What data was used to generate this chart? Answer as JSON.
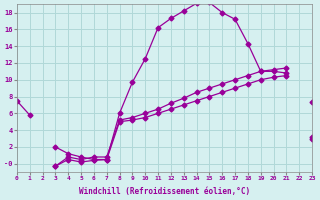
{
  "xlabel": "Windchill (Refroidissement éolien,°C)",
  "background_color": "#d6f0f0",
  "grid_color": "#b0d8d8",
  "line_color": "#990099",
  "xmin": 0,
  "xmax": 23,
  "ymin": -1,
  "ymax": 19,
  "yticks": [
    0,
    2,
    4,
    6,
    8,
    10,
    12,
    14,
    16,
    18
  ],
  "xticks": [
    0,
    1,
    2,
    3,
    4,
    5,
    6,
    7,
    8,
    9,
    10,
    11,
    12,
    13,
    14,
    15,
    16,
    17,
    18,
    19,
    20,
    21,
    22,
    23
  ],
  "line1_x": [
    0,
    1,
    2,
    3,
    4,
    5,
    6,
    7,
    8,
    9,
    10,
    11,
    12,
    13,
    14,
    15,
    16,
    17,
    18,
    19,
    20,
    21,
    22,
    23
  ],
  "line1_y": [
    7.5,
    5.8,
    null,
    2.0,
    1.2,
    0.8,
    0.5,
    0.5,
    6.0,
    9.7,
    12.5,
    16.2,
    17.3,
    18.2,
    19.1,
    19.2,
    18.0,
    17.2,
    14.3,
    11.0,
    11.0,
    10.8,
    null,
    7.3
  ],
  "line2_x": [
    0,
    1,
    2,
    3,
    4,
    5,
    6,
    7,
    8,
    9,
    10,
    11,
    12,
    13,
    14,
    15,
    16,
    17,
    18,
    19,
    20,
    21,
    22,
    23
  ],
  "line2_y": [
    null,
    null,
    null,
    -0.3,
    0.5,
    0.2,
    0.4,
    0.5,
    5.0,
    5.2,
    5.5,
    6.0,
    6.5,
    7.0,
    7.5,
    8.0,
    8.5,
    9.0,
    9.5,
    10.0,
    10.3,
    10.5,
    null,
    3.0
  ],
  "line3_x": [
    0,
    1,
    2,
    3,
    4,
    5,
    6,
    7,
    8,
    9,
    10,
    11,
    12,
    13,
    14,
    15,
    16,
    17,
    18,
    19,
    20,
    21,
    22,
    23
  ],
  "line3_y": [
    null,
    null,
    null,
    -0.3,
    0.8,
    0.5,
    0.8,
    0.8,
    5.2,
    5.5,
    6.0,
    6.5,
    7.2,
    7.8,
    8.5,
    9.0,
    9.5,
    10.0,
    10.5,
    11.0,
    11.2,
    11.4,
    null,
    3.2
  ]
}
